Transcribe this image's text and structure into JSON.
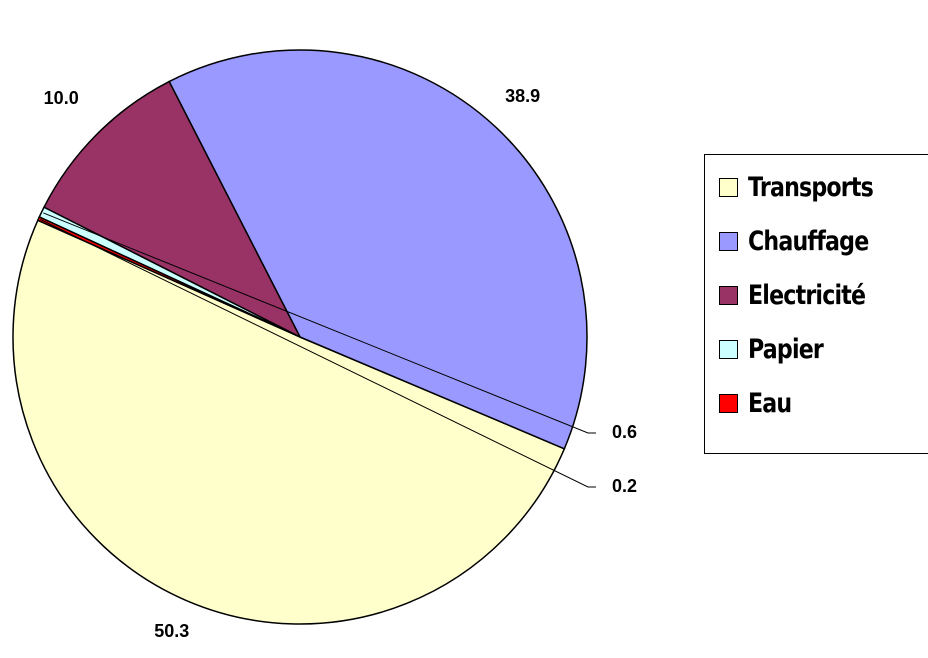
{
  "chart_data": {
    "type": "pie",
    "categories": [
      "Transports",
      "Chauffage",
      "Electricité",
      "Papier",
      "Eau"
    ],
    "values": [
      50.3,
      38.9,
      10.0,
      0.6,
      0.2
    ],
    "value_labels": [
      "50.3",
      "38.9",
      "10.0",
      "0.6",
      "0.2"
    ],
    "colors": [
      "#FFFFCC",
      "#9999FF",
      "#993366",
      "#CCFFFF",
      "#FF0000"
    ],
    "legend_position": "right"
  }
}
